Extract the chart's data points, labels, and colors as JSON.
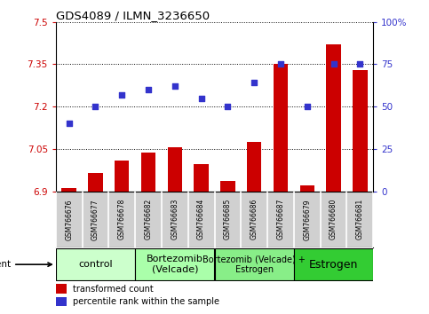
{
  "title": "GDS4089 / ILMN_3236650",
  "samples": [
    "GSM766676",
    "GSM766677",
    "GSM766678",
    "GSM766682",
    "GSM766683",
    "GSM766684",
    "GSM766685",
    "GSM766686",
    "GSM766687",
    "GSM766679",
    "GSM766680",
    "GSM766681"
  ],
  "transformed_count": [
    6.91,
    6.965,
    7.01,
    7.037,
    7.055,
    6.995,
    6.935,
    7.075,
    7.35,
    6.92,
    7.42,
    7.33
  ],
  "percentile_rank": [
    40,
    50,
    57,
    60,
    62,
    55,
    50,
    64,
    75,
    50,
    75,
    75
  ],
  "ylim_left": [
    6.9,
    7.5
  ],
  "ylim_right": [
    0,
    100
  ],
  "yticks_left": [
    6.9,
    7.05,
    7.2,
    7.35,
    7.5
  ],
  "yticks_right": [
    0,
    25,
    50,
    75,
    100
  ],
  "ytick_labels_left": [
    "6.9",
    "7.05",
    "7.2",
    "7.35",
    "7.5"
  ],
  "ytick_labels_right": [
    "0",
    "25",
    "50",
    "75",
    "100%"
  ],
  "bar_color": "#cc0000",
  "dot_color": "#3333cc",
  "agent_groups": [
    {
      "label": "control",
      "start": 0,
      "end": 3,
      "color": "#ccffcc",
      "fontsize": 8
    },
    {
      "label": "Bortezomib\n(Velcade)",
      "start": 3,
      "end": 6,
      "color": "#aaffaa",
      "fontsize": 8
    },
    {
      "label": "Bortezomib (Velcade) +\nEstrogen",
      "start": 6,
      "end": 9,
      "color": "#88ee88",
      "fontsize": 7
    },
    {
      "label": "Estrogen",
      "start": 9,
      "end": 12,
      "color": "#33cc33",
      "fontsize": 9
    }
  ],
  "legend_bar_label": "transformed count",
  "legend_dot_label": "percentile rank within the sample",
  "background_color": "#ffffff",
  "plot_bg_color": "#ffffff",
  "sample_bg_color": "#d0d0d0",
  "bar_bottom": 6.9,
  "bar_width": 0.55
}
